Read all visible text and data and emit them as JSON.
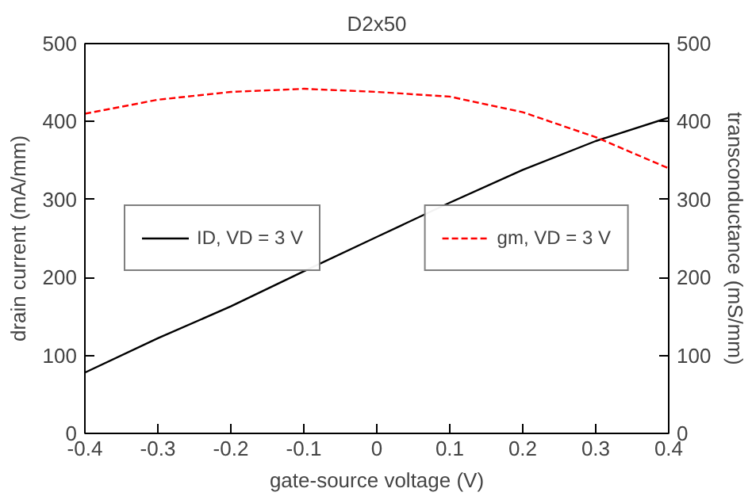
{
  "chart_data": {
    "type": "line",
    "title": "D2x50",
    "xlabel": "gate-source voltage (V)",
    "ylabel": "drain current (mA/mm)",
    "y2label": "transconductance (mS/mm)",
    "x": [
      -0.4,
      -0.3,
      -0.2,
      -0.1,
      0,
      0.1,
      0.2,
      0.3,
      0.4
    ],
    "series": [
      {
        "name": "ID, VD = 3 V",
        "color": "#000000",
        "line_style": "solid",
        "values": [
          78,
          122,
          163,
          208,
          252,
          296,
          338,
          375,
          405
        ]
      },
      {
        "name": "gm, VD = 3 V",
        "color": "#ff0000",
        "line_style": "dashed",
        "axis": "y2",
        "values": [
          410,
          428,
          438,
          442,
          438,
          432,
          412,
          380,
          340
        ]
      }
    ],
    "xlim": [
      -0.4,
      0.4
    ],
    "xticks": [
      -0.4,
      -0.3,
      -0.2,
      -0.1,
      0,
      0.1,
      0.2,
      0.3,
      0.4
    ],
    "ylim": [
      0,
      500
    ],
    "yticks": [
      0,
      100,
      200,
      300,
      400,
      500
    ],
    "y2lim": [
      0,
      500
    ],
    "y2ticks": [
      0,
      100,
      200,
      300,
      400,
      500
    ],
    "grid": false,
    "legend": "left",
    "marker": "none"
  }
}
